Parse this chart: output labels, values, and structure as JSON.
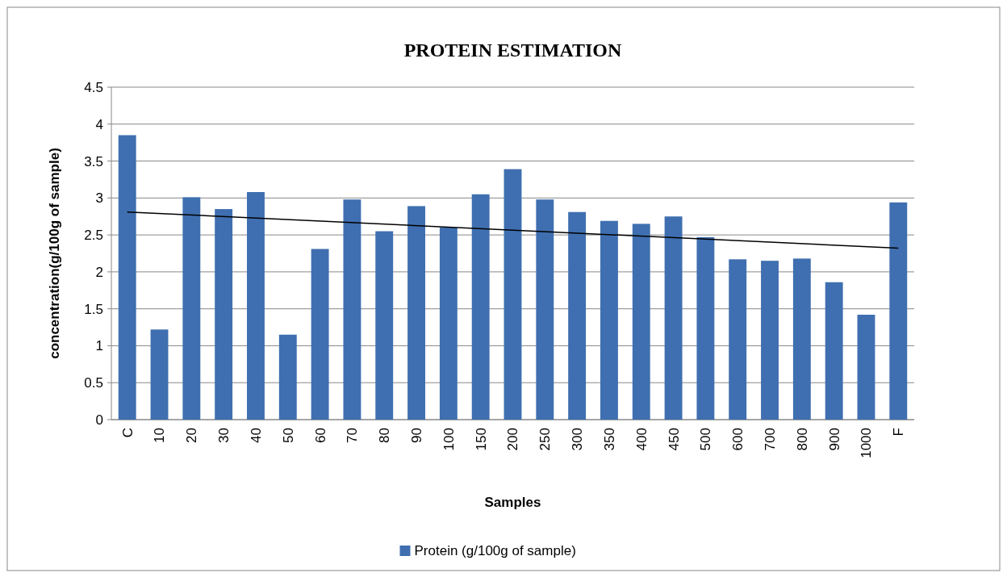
{
  "chart_data": {
    "type": "bar",
    "title": "PROTEIN ESTIMATION",
    "xlabel": "Samples",
    "ylabel": "concentration(g/100g of sample)",
    "categories": [
      "C",
      "10",
      "20",
      "30",
      "40",
      "50",
      "60",
      "70",
      "80",
      "90",
      "100",
      "150",
      "200",
      "250",
      "300",
      "350",
      "400",
      "450",
      "500",
      "600",
      "700",
      "800",
      "900",
      "1000",
      "F"
    ],
    "series": [
      {
        "name": "Protein (g/100g of sample)",
        "color": "#3f6fb0",
        "values": [
          3.85,
          1.22,
          3.01,
          2.85,
          3.08,
          1.15,
          2.31,
          2.98,
          2.55,
          2.89,
          2.6,
          3.05,
          3.39,
          2.98,
          2.81,
          2.69,
          2.65,
          2.75,
          2.47,
          2.17,
          2.15,
          2.18,
          1.86,
          1.42,
          2.94
        ]
      },
      {
        "type": "line",
        "color": "#000000",
        "x": [
          "C",
          "F"
        ],
        "values": [
          2.81,
          2.32
        ]
      }
    ],
    "ylim": [
      0,
      4.5
    ],
    "yticks": [
      0,
      0.5,
      1,
      1.5,
      2,
      2.5,
      3,
      3.5,
      4,
      4.5
    ],
    "grid": "y",
    "legend": "bottom"
  }
}
